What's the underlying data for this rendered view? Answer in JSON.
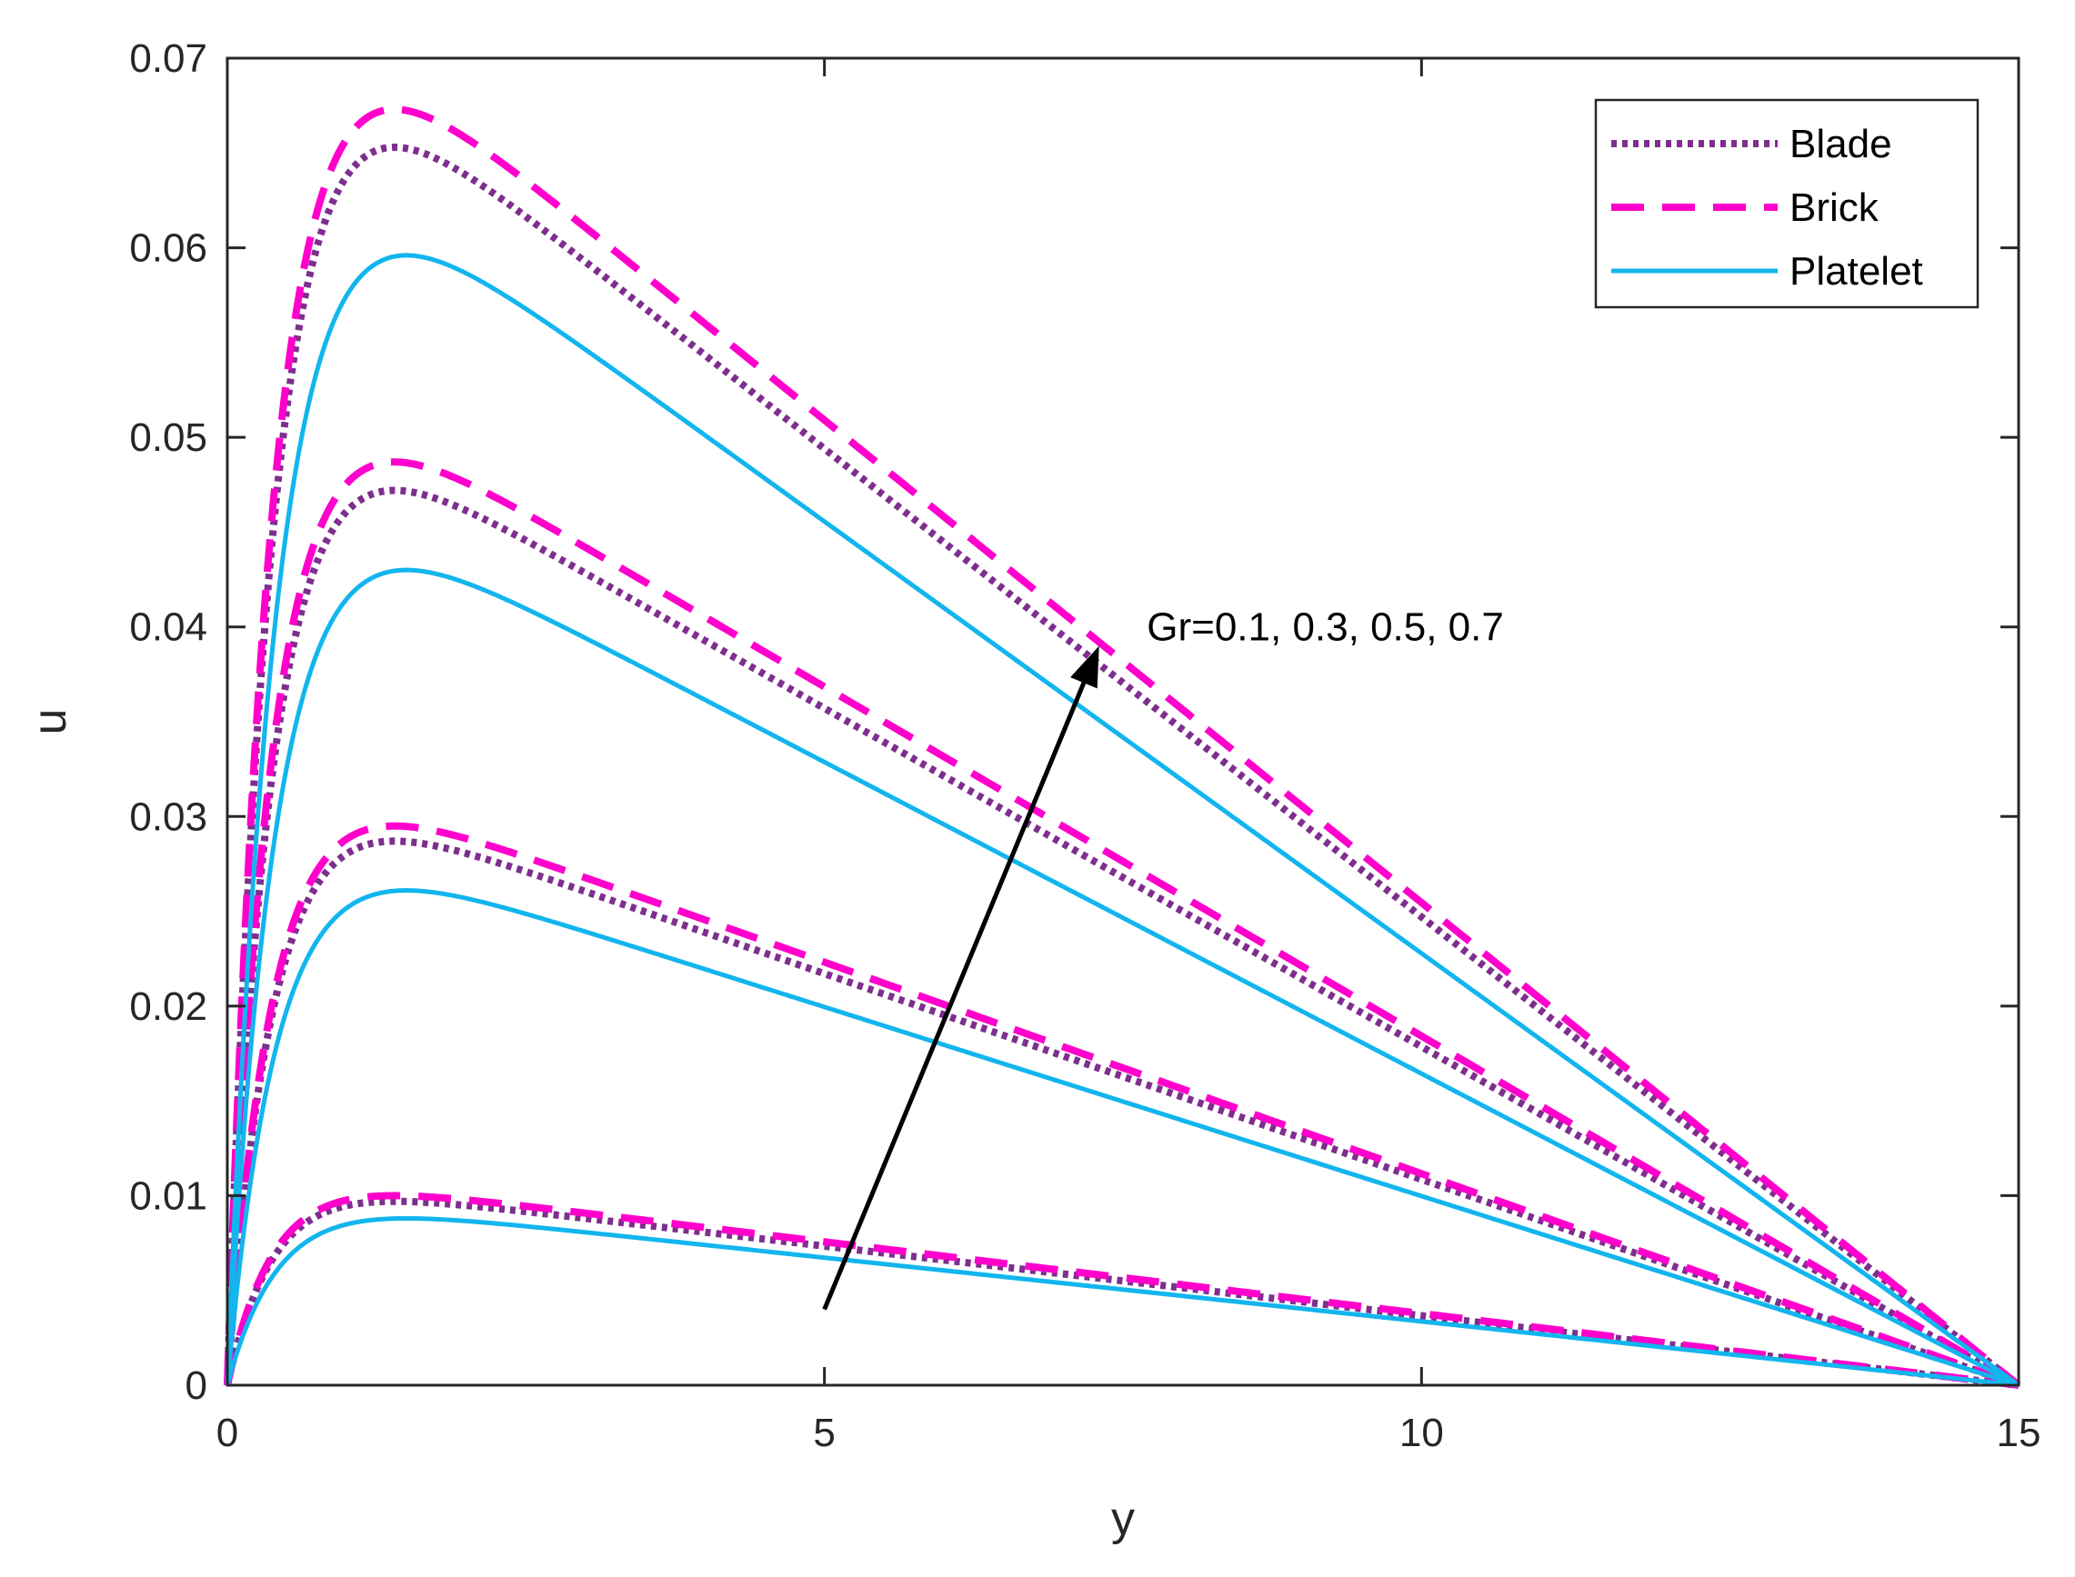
{
  "chart_data": {
    "type": "line",
    "title": "",
    "xlabel": "y",
    "ylabel": "u",
    "xlim": [
      0,
      15
    ],
    "ylim": [
      0,
      0.07
    ],
    "xticks": [
      0,
      5,
      10,
      15
    ],
    "xtick_labels": [
      "0",
      "5",
      "10",
      "15"
    ],
    "yticks": [
      0,
      0.01,
      0.02,
      0.03,
      0.04,
      0.05,
      0.06,
      0.07
    ],
    "ytick_labels": [
      "0",
      "0.01",
      "0.02",
      "0.03",
      "0.04",
      "0.05",
      "0.06",
      "0.07"
    ],
    "grid": false,
    "legend_position": "top-right",
    "profile_model": "u(y) = A * (1 - y/15) * (1 - exp(-k*y)); peak near y = 1.4, zero at y = 0 and y = 15",
    "parameter_values": [
      0.1,
      0.3,
      0.5,
      0.7
    ],
    "series": [
      {
        "name": "Blade",
        "style": "dotted",
        "color": "#7E2F8E",
        "peak_x": 1.4,
        "peak_values": [
          0.0097,
          0.0287,
          0.0472,
          0.0653
        ]
      },
      {
        "name": "Brick",
        "style": "dashed",
        "color": "#FF00CC",
        "peak_x": 1.4,
        "peak_values": [
          0.01,
          0.0295,
          0.0487,
          0.0673
        ]
      },
      {
        "name": "Platelet",
        "style": "solid",
        "color": "#12B5EE",
        "peak_x": 1.5,
        "peak_values": [
          0.0088,
          0.0261,
          0.043,
          0.0596
        ]
      }
    ],
    "annotations": [
      {
        "text": "Gr=0.1, 0.3, 0.5, 0.7",
        "arrow_from": [
          5.0,
          0.004
        ],
        "arrow_to": [
          7.3,
          0.039
        ],
        "text_at": [
          7.7,
          0.04
        ]
      }
    ]
  }
}
